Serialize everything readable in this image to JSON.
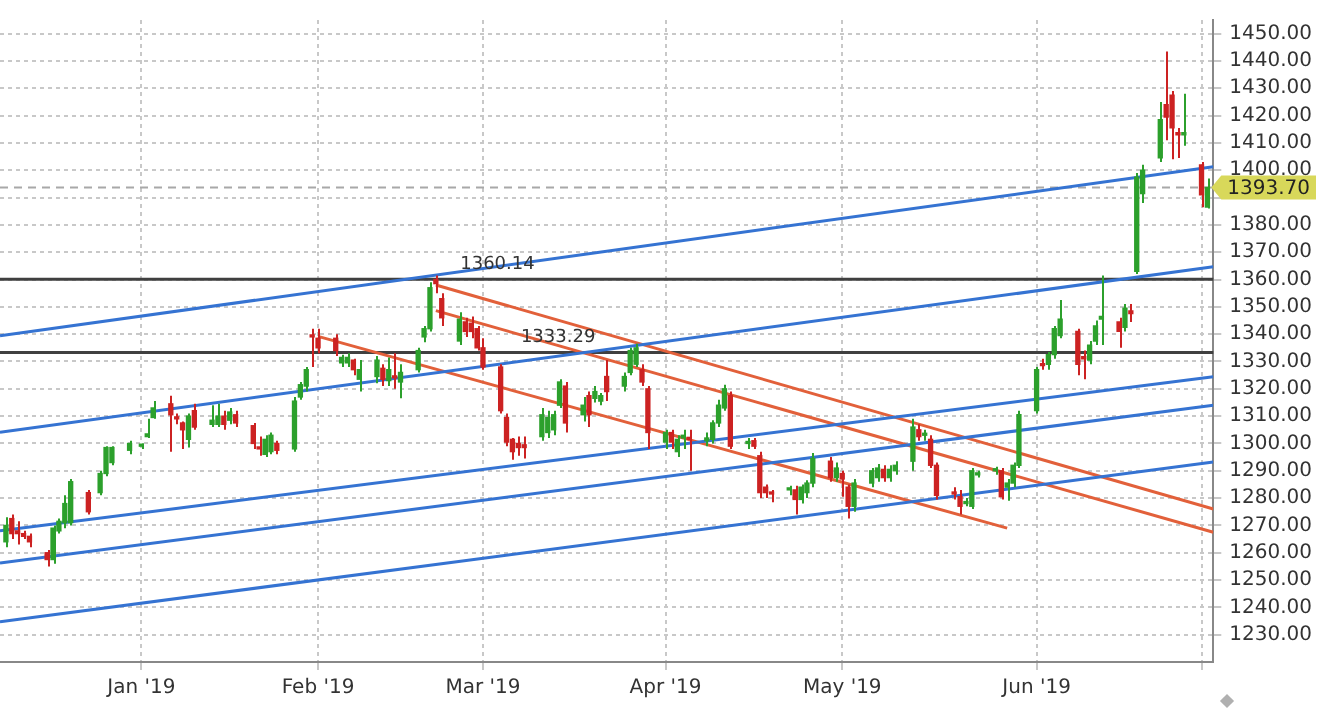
{
  "chart_data": {
    "type": "candlestick",
    "x": [
      "2018-12-10",
      "2018-12-11",
      "2018-12-12",
      "2018-12-13",
      "2018-12-14",
      "2018-12-17",
      "2018-12-18",
      "2018-12-19",
      "2018-12-20",
      "2018-12-21",
      "2018-12-24",
      "2018-12-26",
      "2018-12-27",
      "2018-12-28",
      "2018-12-31",
      "2019-01-02",
      "2019-01-03",
      "2019-01-04",
      "2019-01-07",
      "2019-01-08",
      "2019-01-09",
      "2019-01-10",
      "2019-01-11",
      "2019-01-14",
      "2019-01-15",
      "2019-01-16",
      "2019-01-17",
      "2019-01-18",
      "2019-01-21",
      "2019-01-22",
      "2019-01-23",
      "2019-01-24",
      "2019-01-25",
      "2019-01-28",
      "2019-01-29",
      "2019-01-30",
      "2019-01-31",
      "2019-02-01",
      "2019-02-04",
      "2019-02-05",
      "2019-02-06",
      "2019-02-07",
      "2019-02-08",
      "2019-02-11",
      "2019-02-12",
      "2019-02-13",
      "2019-02-14",
      "2019-02-15",
      "2019-02-18",
      "2019-02-19",
      "2019-02-20",
      "2019-02-21",
      "2019-02-22",
      "2019-02-25",
      "2019-02-26",
      "2019-02-27",
      "2019-02-28",
      "2019-03-01",
      "2019-03-04",
      "2019-03-05",
      "2019-03-06",
      "2019-03-07",
      "2019-03-08",
      "2019-03-11",
      "2019-03-12",
      "2019-03-13",
      "2019-03-14",
      "2019-03-15",
      "2019-03-18",
      "2019-03-19",
      "2019-03-20",
      "2019-03-21",
      "2019-03-22",
      "2019-03-25",
      "2019-03-26",
      "2019-03-27",
      "2019-03-28",
      "2019-03-29",
      "2019-04-01",
      "2019-04-02",
      "2019-04-03",
      "2019-04-04",
      "2019-04-05",
      "2019-04-08",
      "2019-04-09",
      "2019-04-10",
      "2019-04-11",
      "2019-04-12",
      "2019-04-15",
      "2019-04-16",
      "2019-04-17",
      "2019-04-18",
      "2019-04-19",
      "2019-04-22",
      "2019-04-23",
      "2019-04-24",
      "2019-04-25",
      "2019-04-26",
      "2019-04-29",
      "2019-04-30",
      "2019-05-01",
      "2019-05-02",
      "2019-05-03",
      "2019-05-06",
      "2019-05-07",
      "2019-05-08",
      "2019-05-09",
      "2019-05-10",
      "2019-05-13",
      "2019-05-14",
      "2019-05-15",
      "2019-05-16",
      "2019-05-17",
      "2019-05-20",
      "2019-05-21",
      "2019-05-22",
      "2019-05-23",
      "2019-05-24",
      "2019-05-27",
      "2019-05-28",
      "2019-05-29",
      "2019-05-30",
      "2019-05-31",
      "2019-06-03",
      "2019-06-04",
      "2019-06-05",
      "2019-06-06",
      "2019-06-07",
      "2019-06-10",
      "2019-06-11",
      "2019-06-12",
      "2019-06-13",
      "2019-06-14",
      "2019-06-17",
      "2019-06-18",
      "2019-06-19",
      "2019-06-20",
      "2019-06-21",
      "2019-06-24",
      "2019-06-25",
      "2019-06-26",
      "2019-06-27",
      "2019-06-28",
      "2019-07-01",
      "2019-07-02"
    ],
    "ohlc": [
      [
        1264,
        1273,
        1262,
        1270
      ],
      [
        1272.5,
        1274,
        1265,
        1267
      ],
      [
        1268,
        1271.5,
        1263,
        1267
      ],
      [
        1267,
        1268,
        1265,
        1266
      ],
      [
        1266,
        1267,
        1262,
        1264
      ],
      [
        1260,
        1261,
        1255,
        1257.5
      ],
      [
        1257.5,
        1270,
        1256,
        1269
      ],
      [
        1268,
        1272.5,
        1267,
        1271.5
      ],
      [
        1271,
        1281,
        1269,
        1278
      ],
      [
        1271,
        1287,
        1270,
        1286
      ],
      [
        1282,
        1283,
        1274,
        1275
      ],
      [
        1282,
        1290,
        1281,
        1289
      ],
      [
        1289,
        1299,
        1288,
        1298.5
      ],
      [
        1293,
        1299,
        1292,
        1298.5
      ],
      [
        1297.5,
        1301,
        1296,
        1300
      ],
      [
        1299,
        1300,
        1298,
        1299.5
      ],
      [
        1302.5,
        1309,
        1302,
        1303.5
      ],
      [
        1309.5,
        1315.5,
        1309,
        1313
      ],
      [
        1314.5,
        1317.5,
        1297,
        1310.5
      ],
      [
        1309.5,
        1311,
        1307,
        1309
      ],
      [
        1307.5,
        1308,
        1298,
        1305
      ],
      [
        1301.5,
        1311,
        1298.5,
        1310
      ],
      [
        1312,
        1314.5,
        1305,
        1306
      ],
      [
        1307,
        1314,
        1306,
        1308.5
      ],
      [
        1307,
        1314.5,
        1306,
        1310
      ],
      [
        1310,
        1312,
        1305,
        1307
      ],
      [
        1308.5,
        1313,
        1307,
        1311.5
      ],
      [
        1310.5,
        1312,
        1306,
        1307.5
      ],
      [
        1306.5,
        1307.5,
        1298,
        1300
      ],
      [
        1298.5,
        1302.5,
        1295.5,
        1298
      ],
      [
        1296,
        1303,
        1295,
        1301.5
      ],
      [
        1297,
        1304,
        1296,
        1303
      ],
      [
        1300,
        1301,
        1296,
        1297.5
      ],
      [
        1298,
        1317,
        1297,
        1315.5
      ],
      [
        1317,
        1322.5,
        1316,
        1321.5
      ],
      [
        1321,
        1328,
        1319,
        1327
      ],
      [
        1339.5,
        1342,
        1328,
        1339
      ],
      [
        1338.5,
        1342,
        1333,
        1335
      ],
      [
        1338.5,
        1340,
        1332,
        1334
      ],
      [
        1329.5,
        1332.5,
        1328,
        1331.5
      ],
      [
        1329.5,
        1333,
        1328,
        1331.5
      ],
      [
        1330.5,
        1331,
        1325,
        1327
      ],
      [
        1323.5,
        1330.5,
        1319,
        1327
      ],
      [
        1324.5,
        1332,
        1322,
        1330.5
      ],
      [
        1327.5,
        1329,
        1321,
        1323.5
      ],
      [
        1323,
        1331.5,
        1321,
        1327
      ],
      [
        1324.5,
        1333,
        1320,
        1324
      ],
      [
        1322.5,
        1329,
        1316.5,
        1326
      ],
      [
        1327,
        1335,
        1326,
        1334
      ],
      [
        1339,
        1343,
        1337,
        1342
      ],
      [
        1342,
        1359,
        1341,
        1357
      ],
      [
        1360,
        1361.5,
        1355,
        1358.5
      ],
      [
        1353,
        1355,
        1343,
        1346
      ],
      [
        1337.5,
        1348,
        1336,
        1345.5
      ],
      [
        1344.5,
        1346,
        1339,
        1341
      ],
      [
        1344,
        1346.5,
        1338.5,
        1341
      ],
      [
        1342,
        1343,
        1334,
        1335
      ],
      [
        1335,
        1338.5,
        1327,
        1328
      ],
      [
        1328,
        1329,
        1311,
        1312
      ],
      [
        1309.5,
        1311,
        1299,
        1300.5
      ],
      [
        1301.5,
        1302,
        1294,
        1297
      ],
      [
        1300,
        1302.5,
        1295.5,
        1298.5
      ],
      [
        1299.5,
        1302.5,
        1294.5,
        1298.5
      ],
      [
        1302.5,
        1313,
        1301,
        1310.5
      ],
      [
        1304,
        1312,
        1302,
        1309.5
      ],
      [
        1305,
        1312,
        1303,
        1310.5
      ],
      [
        1314,
        1323.5,
        1313,
        1322.5
      ],
      [
        1321,
        1322.5,
        1304,
        1307.5
      ],
      [
        1310.5,
        1317,
        1308,
        1314
      ],
      [
        1317.5,
        1319,
        1306,
        1310.5
      ],
      [
        1316.5,
        1321,
        1315,
        1319
      ],
      [
        1315.5,
        1318.5,
        1314,
        1317.5
      ],
      [
        1324.5,
        1330.5,
        1315.5,
        1319
      ],
      [
        1321,
        1326,
        1319,
        1324.5
      ],
      [
        1326,
        1335,
        1325,
        1334
      ],
      [
        1329,
        1336.5,
        1328,
        1335
      ],
      [
        1327,
        1329,
        1321,
        1322.5
      ],
      [
        1320,
        1321,
        1298,
        1304
      ],
      [
        1300.5,
        1305,
        1298,
        1304
      ],
      [
        1304,
        1305,
        1298,
        1300.5
      ],
      [
        1297,
        1303,
        1295,
        1301.5
      ],
      [
        1302,
        1305,
        1298,
        1303
      ],
      [
        1302,
        1305,
        1290,
        1301.5
      ],
      [
        1301,
        1304,
        1299,
        1302
      ],
      [
        1301.5,
        1308.5,
        1300,
        1307.5
      ],
      [
        1307.5,
        1316,
        1306,
        1314
      ],
      [
        1313,
        1321.5,
        1312,
        1320
      ],
      [
        1317.5,
        1319,
        1298,
        1299
      ],
      [
        1300,
        1302,
        1298,
        1300.5
      ],
      [
        1301,
        1302,
        1298,
        1299
      ],
      [
        1295.5,
        1297,
        1280,
        1282
      ],
      [
        1284,
        1285,
        1280,
        1282
      ],
      [
        1282,
        1283,
        1278.5,
        1281.5
      ],
      [
        1283,
        1284.5,
        1281,
        1283.5
      ],
      [
        1283,
        1284.5,
        1274,
        1279.5
      ],
      [
        1279.5,
        1285,
        1278,
        1284
      ],
      [
        1282,
        1286.5,
        1280,
        1285.5
      ],
      [
        1285.5,
        1296.5,
        1284,
        1294.5
      ],
      [
        1293.5,
        1295,
        1286,
        1287.5
      ],
      [
        1287.5,
        1293,
        1286,
        1291
      ],
      [
        1289,
        1290,
        1280.5,
        1287
      ],
      [
        1284,
        1285,
        1272.5,
        1277
      ],
      [
        1277,
        1287,
        1275,
        1285.5
      ],
      [
        1285.5,
        1291,
        1284,
        1290
      ],
      [
        1287.5,
        1292.5,
        1286,
        1291
      ],
      [
        1290.5,
        1292,
        1286,
        1287.5
      ],
      [
        1287.5,
        1292,
        1286,
        1290.5
      ],
      [
        1290,
        1293.5,
        1288.5,
        1292
      ],
      [
        1293.5,
        1309,
        1290,
        1306
      ],
      [
        1305,
        1307,
        1301,
        1302.5
      ],
      [
        1303,
        1305,
        1301,
        1303.5
      ],
      [
        1301.5,
        1303,
        1291,
        1292
      ],
      [
        1292,
        1293,
        1279.5,
        1281
      ],
      [
        1282,
        1284,
        1279.5,
        1281.5
      ],
      [
        1280.5,
        1283,
        1274,
        1277
      ],
      [
        1278,
        1280,
        1277,
        1278.5
      ],
      [
        1277,
        1291,
        1276,
        1290
      ],
      [
        1288.5,
        1290,
        1287.5,
        1289
      ],
      [
        1290,
        1291.5,
        1288.5,
        1290.5
      ],
      [
        1290,
        1291,
        1279.5,
        1280.5
      ],
      [
        1284,
        1287,
        1279,
        1285.5
      ],
      [
        1285.5,
        1293,
        1284,
        1292
      ],
      [
        1292,
        1312,
        1291,
        1310.5
      ],
      [
        1312,
        1328,
        1311,
        1327
      ],
      [
        1329,
        1331,
        1327,
        1328.5
      ],
      [
        1329,
        1333.5,
        1327,
        1332.5
      ],
      [
        1332.5,
        1343,
        1331,
        1342
      ],
      [
        1339.5,
        1352.5,
        1338.5,
        1345.5
      ],
      [
        1341,
        1342,
        1325,
        1329
      ],
      [
        1331.5,
        1334,
        1323.5,
        1331
      ],
      [
        1330.5,
        1337.5,
        1329,
        1336
      ],
      [
        1337.5,
        1345,
        1336,
        1343
      ],
      [
        1345.5,
        1361.5,
        1336,
        1346.5
      ],
      [
        1344.5,
        1346,
        1335,
        1341
      ],
      [
        1342.5,
        1351,
        1341,
        1349.5
      ],
      [
        1348.5,
        1351,
        1344.5,
        1347.5
      ],
      [
        1363,
        1399,
        1362,
        1397.5
      ],
      [
        1391.5,
        1402,
        1388,
        1400
      ],
      [
        1404.5,
        1425,
        1403,
        1418.5
      ],
      [
        1424,
        1443.5,
        1411,
        1419.5
      ],
      [
        1427.5,
        1429,
        1404,
        1415.5
      ],
      [
        1413.5,
        1415.5,
        1404.5,
        1413
      ],
      [
        1413,
        1428,
        1409,
        1413.5
      ],
      [
        1402,
        1403,
        1386.5,
        1391
      ],
      [
        1386.5,
        1397,
        1386,
        1393.7
      ]
    ],
    "series": [
      {
        "type": "line",
        "x": [
          "2018-12-09",
          "2019-07-03"
        ],
        "values": [
          1339.4,
          1401.3
        ],
        "color": "#3573d2"
      },
      {
        "type": "line",
        "x": [
          "2018-12-09",
          "2019-07-03"
        ],
        "values": [
          1304.1,
          1364.7
        ],
        "color": "#3573d2"
      },
      {
        "type": "line",
        "x": [
          "2018-12-09",
          "2019-07-03"
        ],
        "values": [
          1268,
          1324.4
        ],
        "color": "#3573d2"
      },
      {
        "type": "line",
        "x": [
          "2018-12-09",
          "2019-07-03"
        ],
        "values": [
          1256.2,
          1314
        ],
        "color": "#3573d2"
      },
      {
        "type": "line",
        "x": [
          "2018-12-09",
          "2019-07-03"
        ],
        "values": [
          1234.7,
          1293.2
        ],
        "color": "#3573d2"
      },
      {
        "type": "line",
        "x": [
          "2019-02-21",
          "2019-07-03"
        ],
        "values": [
          1358,
          1276
        ],
        "color": "#e2603a"
      },
      {
        "type": "line",
        "x": [
          "2019-02-21",
          "2019-07-03"
        ],
        "values": [
          1348.6,
          1267.5
        ],
        "color": "#e2603a"
      },
      {
        "type": "line",
        "x": [
          "2019-02-01",
          "2019-05-29"
        ],
        "values": [
          1339.2,
          1269
        ],
        "color": "#e2603a"
      }
    ],
    "ref_lines": [
      {
        "axis": "y",
        "value": 1360.14,
        "label": "1360.14",
        "color": "#404040"
      },
      {
        "axis": "y",
        "value": 1333.29,
        "label": "1333.29",
        "color": "#404040"
      },
      {
        "axis": "y",
        "value": 1393.7,
        "label": "1393.70",
        "color": "#a8a8a8",
        "line_style": "dashed"
      }
    ],
    "xlim": [
      "2018-12-09",
      "2019-07-03"
    ],
    "xticks": [
      {
        "value": "2019-01-02",
        "label": "Jan '19"
      },
      {
        "value": "2019-02-01",
        "label": "Feb '19"
      },
      {
        "value": "2019-03-01",
        "label": "Mar '19"
      },
      {
        "value": "2019-04-01",
        "label": "Apr '19"
      },
      {
        "value": "2019-05-01",
        "label": "May '19"
      },
      {
        "value": "2019-06-03",
        "label": "Jun '19"
      },
      {
        "value": "2019-07-01",
        "label": null
      }
    ],
    "ylim": [
      1220,
      1455
    ],
    "yticks": [
      {
        "value": 1230,
        "label": "1230.00"
      },
      {
        "value": 1240,
        "label": "1240.00"
      },
      {
        "value": 1250,
        "label": "1250.00"
      },
      {
        "value": 1260,
        "label": "1260.00"
      },
      {
        "value": 1270,
        "label": "1270.00"
      },
      {
        "value": 1280,
        "label": "1280.00"
      },
      {
        "value": 1290,
        "label": "1290.00"
      },
      {
        "value": 1300,
        "label": "1300.00"
      },
      {
        "value": 1310,
        "label": "1310.00"
      },
      {
        "value": 1320,
        "label": "1320.00"
      },
      {
        "value": 1330,
        "label": "1330.00"
      },
      {
        "value": 1340,
        "label": "1340.00"
      },
      {
        "value": 1350,
        "label": "1350.00"
      },
      {
        "value": 1360,
        "label": "1360.00"
      },
      {
        "value": 1370,
        "label": "1370.00"
      },
      {
        "value": 1380,
        "label": "1380.00"
      },
      {
        "value": 1390,
        "label": null
      },
      {
        "value": 1400,
        "label": "1400.00"
      },
      {
        "value": 1410,
        "label": "1410.00"
      },
      {
        "value": 1420,
        "label": "1420.00"
      },
      {
        "value": 1430,
        "label": "1430.00"
      },
      {
        "value": 1440,
        "label": "1440.00"
      },
      {
        "value": 1450,
        "label": "1450.00"
      }
    ],
    "grid": true,
    "legend": false,
    "line_style": "solid"
  }
}
